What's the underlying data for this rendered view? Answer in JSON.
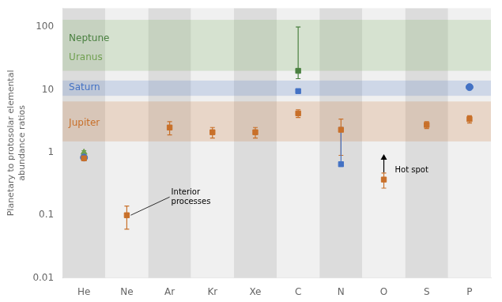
{
  "chart_data": {
    "type": "scatter",
    "categories": [
      "He",
      "Ne",
      "Ar",
      "Kr",
      "Xe",
      "C",
      "N",
      "O",
      "S",
      "P"
    ],
    "ylabel": "Planetary to protosolar elemental\nabundance ratios",
    "log": "y",
    "ylim": [
      0.01,
      200
    ],
    "yticks": [
      0.01,
      0.1,
      1,
      10,
      100
    ],
    "grid": false,
    "series": [
      {
        "color": "#C8702A",
        "marker": "square",
        "values": [
          0.807,
          0.1,
          2.5,
          2.1,
          2.1,
          4.2,
          2.3,
          0.37,
          2.75,
          3.4
        ],
        "err_lo": [
          0.05,
          0.04,
          0.6,
          0.4,
          0.4,
          0.6,
          1.4,
          0.1,
          0.35,
          0.45
        ],
        "err_hi": [
          0.05,
          0.04,
          0.6,
          0.4,
          0.4,
          0.6,
          1.1,
          0.1,
          0.35,
          0.45
        ],
        "arrow_up": [
          false,
          false,
          false,
          false,
          false,
          false,
          false,
          true,
          false,
          false
        ]
      },
      {
        "color": "#4472C4",
        "marker": [
          "circle",
          null,
          null,
          null,
          null,
          "square",
          "square",
          null,
          null,
          "circle"
        ],
        "values": [
          0.83,
          null,
          null,
          null,
          null,
          9.5,
          0.65,
          null,
          null,
          11
        ],
        "err_lo": [
          0.04,
          null,
          null,
          null,
          null,
          0.5,
          0.0,
          null,
          null,
          0.5
        ],
        "err_hi": [
          0.04,
          null,
          null,
          null,
          null,
          0.5,
          1.85,
          null,
          null,
          0.5
        ]
      },
      {
        "color": "#70A050",
        "marker": "triangle",
        "values": [
          1.0,
          null,
          null,
          null,
          null,
          null,
          null,
          null,
          null,
          null
        ],
        "err_lo": [
          0.07,
          null,
          null,
          null,
          null,
          null,
          null,
          null,
          null,
          null
        ],
        "err_hi": [
          0.07,
          null,
          null,
          null,
          null,
          null,
          null,
          null,
          null,
          null
        ]
      },
      {
        "color": "#4A8040",
        "marker": "square",
        "values": [
          null,
          null,
          null,
          null,
          null,
          20.0,
          null,
          null,
          null,
          null
        ],
        "err_lo": [
          null,
          null,
          null,
          null,
          null,
          5.0,
          null,
          null,
          null,
          null
        ],
        "err_hi": [
          null,
          null,
          null,
          null,
          null,
          80.0,
          null,
          null,
          null,
          null
        ]
      }
    ],
    "bands": [
      {
        "from": 1.5,
        "to": 6.5,
        "color": "#C8702A"
      },
      {
        "from": 8.0,
        "to": 14.0,
        "color": "#4472C4"
      },
      {
        "from": 20.0,
        "to": 130.0,
        "color": "#70A850"
      }
    ],
    "annotations": [
      {
        "text": "Neptune",
        "y": 65,
        "color": "#4A8040"
      },
      {
        "text": "Uranus",
        "y": 32,
        "color": "#70A050"
      },
      {
        "text": "Saturn",
        "y": 10.8,
        "color": "#4472C4"
      },
      {
        "text": "Jupiter",
        "y": 2.9,
        "color": "#C8702A"
      },
      {
        "text": "Interior\nprocesses",
        "x": "Ar",
        "y": 0.195,
        "target": {
          "x": "Ne",
          "y": 0.1
        }
      },
      {
        "text": "Hot spot",
        "x": "O",
        "y": 0.52
      }
    ]
  }
}
